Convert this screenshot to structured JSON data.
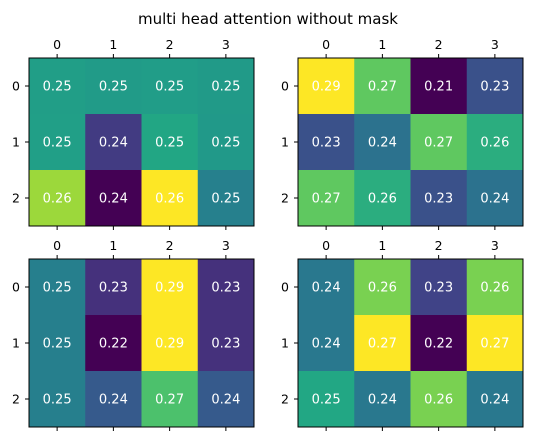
{
  "chart_data": {
    "type": "heatmap",
    "title": "multi head attention without mask",
    "colormap": "viridis",
    "grid": false,
    "xticks": [
      "0",
      "1",
      "2",
      "3"
    ],
    "yticks": [
      "0",
      "1",
      "2"
    ],
    "heads": [
      {
        "values": [
          [
            0.2502,
            0.2499,
            0.2501,
            0.2498
          ],
          [
            0.2503,
            0.2399,
            0.2512,
            0.2496
          ],
          [
            0.258,
            0.2352,
            0.262,
            0.2468
          ]
        ]
      },
      {
        "values": [
          [
            0.29,
            0.27,
            0.21,
            0.23
          ],
          [
            0.23,
            0.24,
            0.27,
            0.26
          ],
          [
            0.27,
            0.26,
            0.23,
            0.24
          ]
        ]
      },
      {
        "values": [
          [
            0.25,
            0.23,
            0.29,
            0.23
          ],
          [
            0.25,
            0.22,
            0.29,
            0.23
          ],
          [
            0.25,
            0.24,
            0.27,
            0.24
          ]
        ]
      },
      {
        "values": [
          [
            0.24,
            0.26,
            0.23,
            0.26
          ],
          [
            0.24,
            0.27,
            0.22,
            0.27
          ],
          [
            0.25,
            0.24,
            0.26,
            0.24
          ]
        ]
      }
    ],
    "labels": [
      [
        [
          "0.25",
          "0.25",
          "0.25",
          "0.25"
        ],
        [
          "0.25",
          "0.24",
          "0.25",
          "0.25"
        ],
        [
          "0.26",
          "0.24",
          "0.26",
          "0.25"
        ]
      ],
      [
        [
          "0.29",
          "0.27",
          "0.21",
          "0.23"
        ],
        [
          "0.23",
          "0.24",
          "0.27",
          "0.26"
        ],
        [
          "0.27",
          "0.26",
          "0.23",
          "0.24"
        ]
      ],
      [
        [
          "0.25",
          "0.23",
          "0.29",
          "0.23"
        ],
        [
          "0.25",
          "0.22",
          "0.29",
          "0.23"
        ],
        [
          "0.25",
          "0.24",
          "0.27",
          "0.24"
        ]
      ],
      [
        [
          "0.24",
          "0.26",
          "0.23",
          "0.26"
        ],
        [
          "0.24",
          "0.27",
          "0.22",
          "0.27"
        ],
        [
          "0.25",
          "0.24",
          "0.26",
          "0.24"
        ]
      ]
    ]
  }
}
